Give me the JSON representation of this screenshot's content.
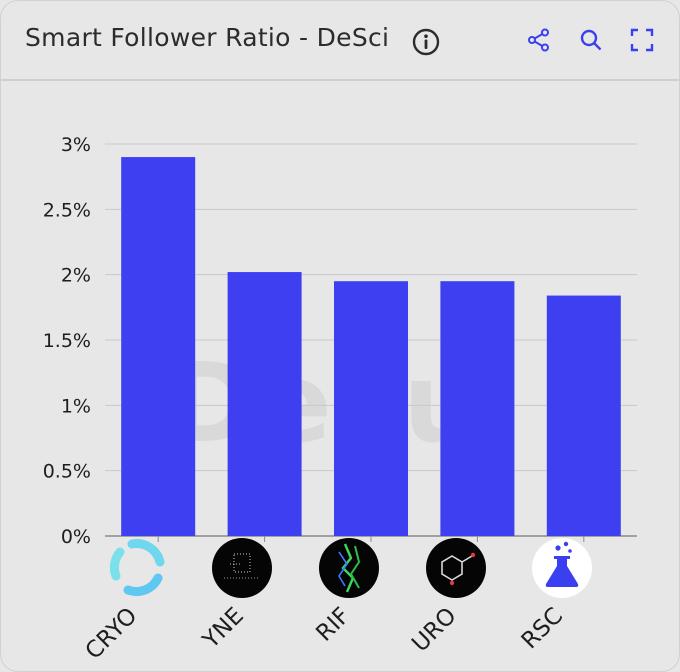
{
  "header": {
    "title": "Smart Follower Ratio - DeSci",
    "info_icon": "info-circle-icon",
    "tools": [
      "share-nodes-icon",
      "search-icon",
      "fullscreen-icon"
    ],
    "accent_color": "#3a3ff0"
  },
  "watermark": "Dexu",
  "chart_data": {
    "type": "bar",
    "categories": [
      "CRYO",
      "YNE",
      "RIF",
      "URO",
      "RSC"
    ],
    "values": [
      2.9,
      2.02,
      1.95,
      1.95,
      1.84
    ],
    "yticks": [
      "0%",
      "0.5%",
      "1%",
      "1.5%",
      "2%",
      "2.5%",
      "3%"
    ],
    "ylim": [
      0,
      3
    ],
    "bar_color": "#3d3ff0",
    "grid": true,
    "legend": "none",
    "title": "",
    "xlabel": "",
    "ylabel": ""
  }
}
